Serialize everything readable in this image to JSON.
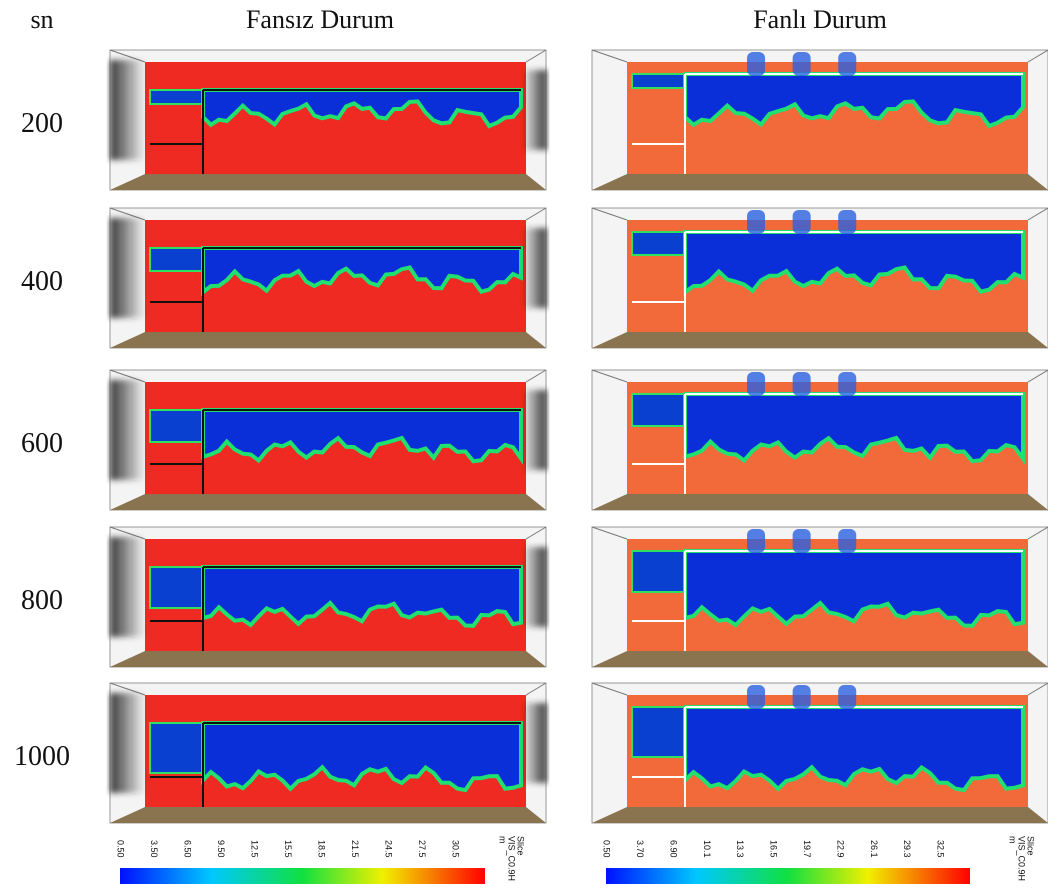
{
  "header": {
    "time_label": "sn",
    "left_title": "Fansız Durum",
    "right_title": "Fanlı Durum"
  },
  "rows": [
    "200",
    "400",
    "600",
    "800",
    "1000"
  ],
  "colorbars": [
    {
      "ticks": [
        "0.50",
        "3.50",
        "6.50",
        "9.50",
        "12.5",
        "15.5",
        "18.5",
        "21.5",
        "24.5",
        "27.5",
        "30.5"
      ],
      "labels": [
        "Slice",
        "VIS_C0.9H",
        "m"
      ]
    },
    {
      "ticks": [
        "0.50",
        "3.70",
        "6.90",
        "10.1",
        "13.3",
        "16.5",
        "19.7",
        "22.9",
        "26.1",
        "29.3",
        "32.5"
      ],
      "labels": [
        "Slice",
        "VIS_C0.9H",
        "m"
      ]
    }
  ]
}
